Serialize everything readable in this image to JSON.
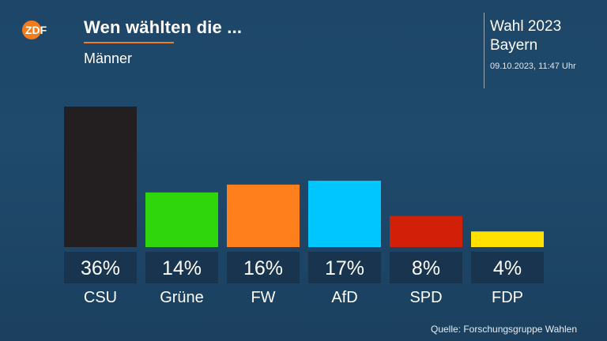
{
  "header": {
    "logo_text": "ZDF",
    "title": "Wen wählten die ...",
    "subtitle": "Männer",
    "election_line1": "Wahl 2023",
    "election_line2": "Bayern",
    "timestamp": "09.10.2023, 11:47 Uhr"
  },
  "source": "Quelle: Forschungsgruppe Wahlen",
  "colors": {
    "CSU": "#231f20",
    "Grüne": "#2fd60b",
    "FW": "#ff7f1d",
    "AfD": "#00c6ff",
    "SPD": "#d21f07",
    "FDP": "#ffe100",
    "label_box": "#18344f",
    "logo_orange": "#f07c1c"
  },
  "chart_data": {
    "type": "bar",
    "categories": [
      "CSU",
      "Grüne",
      "FW",
      "AfD",
      "SPD",
      "FDP"
    ],
    "values": [
      36,
      14,
      16,
      17,
      8,
      4
    ],
    "value_labels": [
      "36%",
      "14%",
      "16%",
      "17%",
      "8%",
      "4%"
    ],
    "ylim": [
      0,
      36
    ],
    "grid": false,
    "legend": "none"
  }
}
